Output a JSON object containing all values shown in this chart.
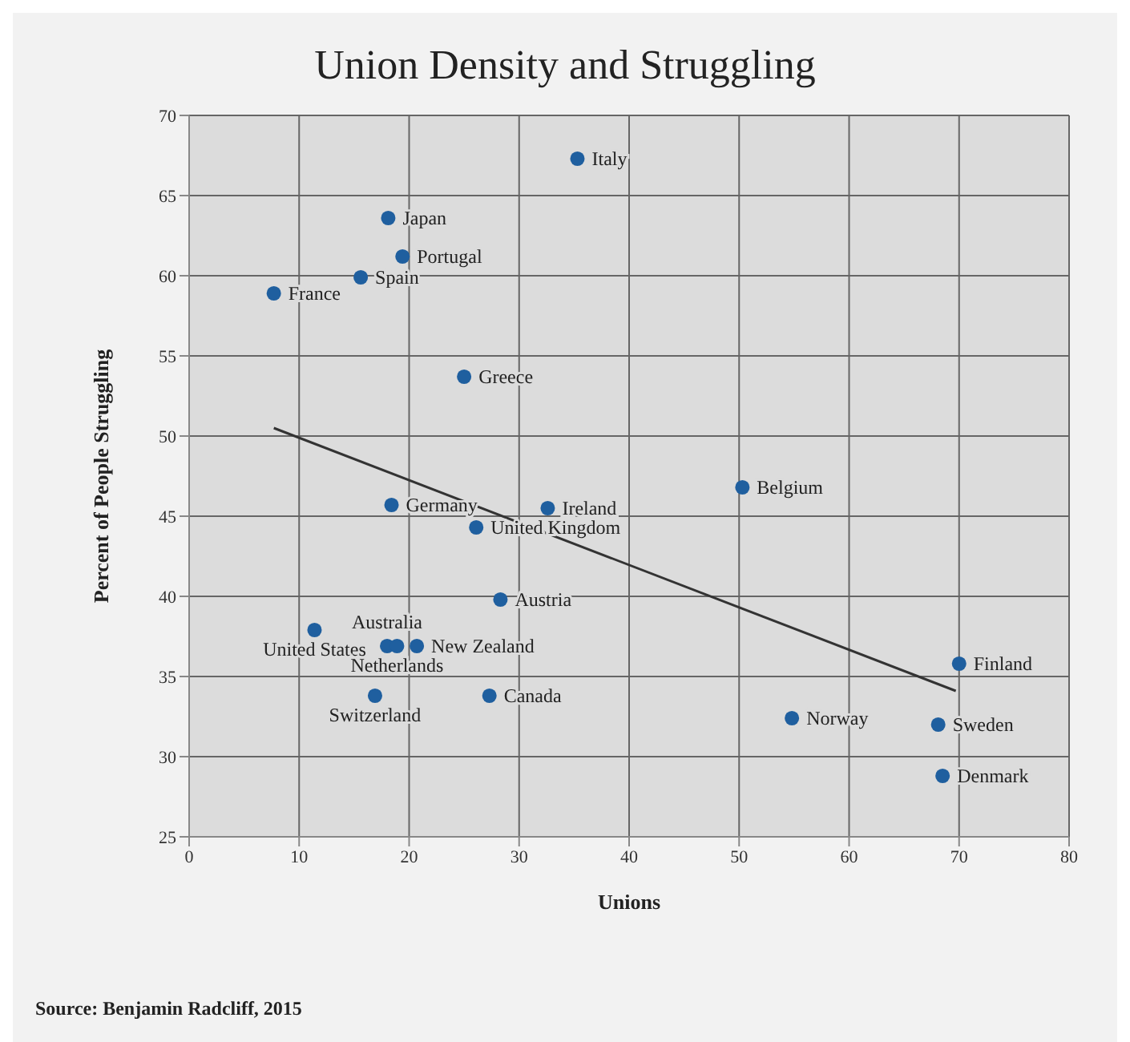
{
  "chart_data": {
    "type": "scatter",
    "title": "Union Density and Struggling",
    "xlabel": "Unions",
    "ylabel": "Percent of People Struggling",
    "xlim": [
      0,
      80
    ],
    "xticks": [
      0,
      10,
      20,
      30,
      40,
      50,
      60,
      70,
      80
    ],
    "ylim": [
      25,
      70
    ],
    "yticks": [
      25,
      30,
      35,
      40,
      45,
      50,
      55,
      60,
      65,
      70
    ],
    "grid": true,
    "series": [
      {
        "marker": "circle",
        "color": "#1f5f9f",
        "x": [
          35.3,
          18.1,
          19.4,
          15.6,
          7.7,
          25.0,
          18.4,
          32.6,
          26.1,
          50.3,
          11.4,
          28.3,
          18.0,
          20.7,
          18.9,
          16.9,
          27.3,
          54.8,
          70.0,
          68.1,
          68.5
        ],
        "values": [
          67.3,
          63.6,
          61.2,
          59.9,
          58.9,
          53.7,
          45.7,
          45.5,
          44.3,
          46.8,
          37.9,
          39.8,
          36.9,
          36.9,
          36.9,
          33.8,
          33.8,
          32.4,
          35.8,
          32.0,
          28.8
        ]
      },
      {
        "type": "line",
        "color": "#333333",
        "x": [
          7.7,
          69.7
        ],
        "values": [
          50.5,
          34.1
        ]
      }
    ],
    "annotations": [
      {
        "text": "Italy",
        "x": 35.3,
        "y": 67.3
      },
      {
        "text": "Japan",
        "x": 18.1,
        "y": 63.6
      },
      {
        "text": "Portugal",
        "x": 19.4,
        "y": 61.2
      },
      {
        "text": "Spain",
        "x": 15.6,
        "y": 59.9
      },
      {
        "text": "France",
        "x": 7.7,
        "y": 58.9
      },
      {
        "text": "Greece",
        "x": 25.0,
        "y": 53.7
      },
      {
        "text": "Germany",
        "x": 18.4,
        "y": 45.7
      },
      {
        "text": "Ireland",
        "x": 32.6,
        "y": 45.5
      },
      {
        "text": "United Kingdom",
        "x": 26.1,
        "y": 44.3
      },
      {
        "text": "Belgium",
        "x": 50.3,
        "y": 46.8
      },
      {
        "text": "United States",
        "x": 11.4,
        "y": 37.9
      },
      {
        "text": "Austria",
        "x": 28.3,
        "y": 39.8
      },
      {
        "text": "Australia",
        "x": 18.0,
        "y": 36.9
      },
      {
        "text": "New Zealand",
        "x": 20.7,
        "y": 36.9
      },
      {
        "text": "Netherlands",
        "x": 18.9,
        "y": 36.9
      },
      {
        "text": "Switzerland",
        "x": 16.9,
        "y": 33.8
      },
      {
        "text": "Canada",
        "x": 27.3,
        "y": 33.8
      },
      {
        "text": "Norway",
        "x": 54.8,
        "y": 32.4
      },
      {
        "text": "Finland",
        "x": 70.0,
        "y": 35.8
      },
      {
        "text": "Sweden",
        "x": 68.1,
        "y": 32.0
      },
      {
        "text": "Denmark",
        "x": 68.5,
        "y": 28.8
      },
      "Source: Benjamin Radcliff, 2015"
    ]
  }
}
